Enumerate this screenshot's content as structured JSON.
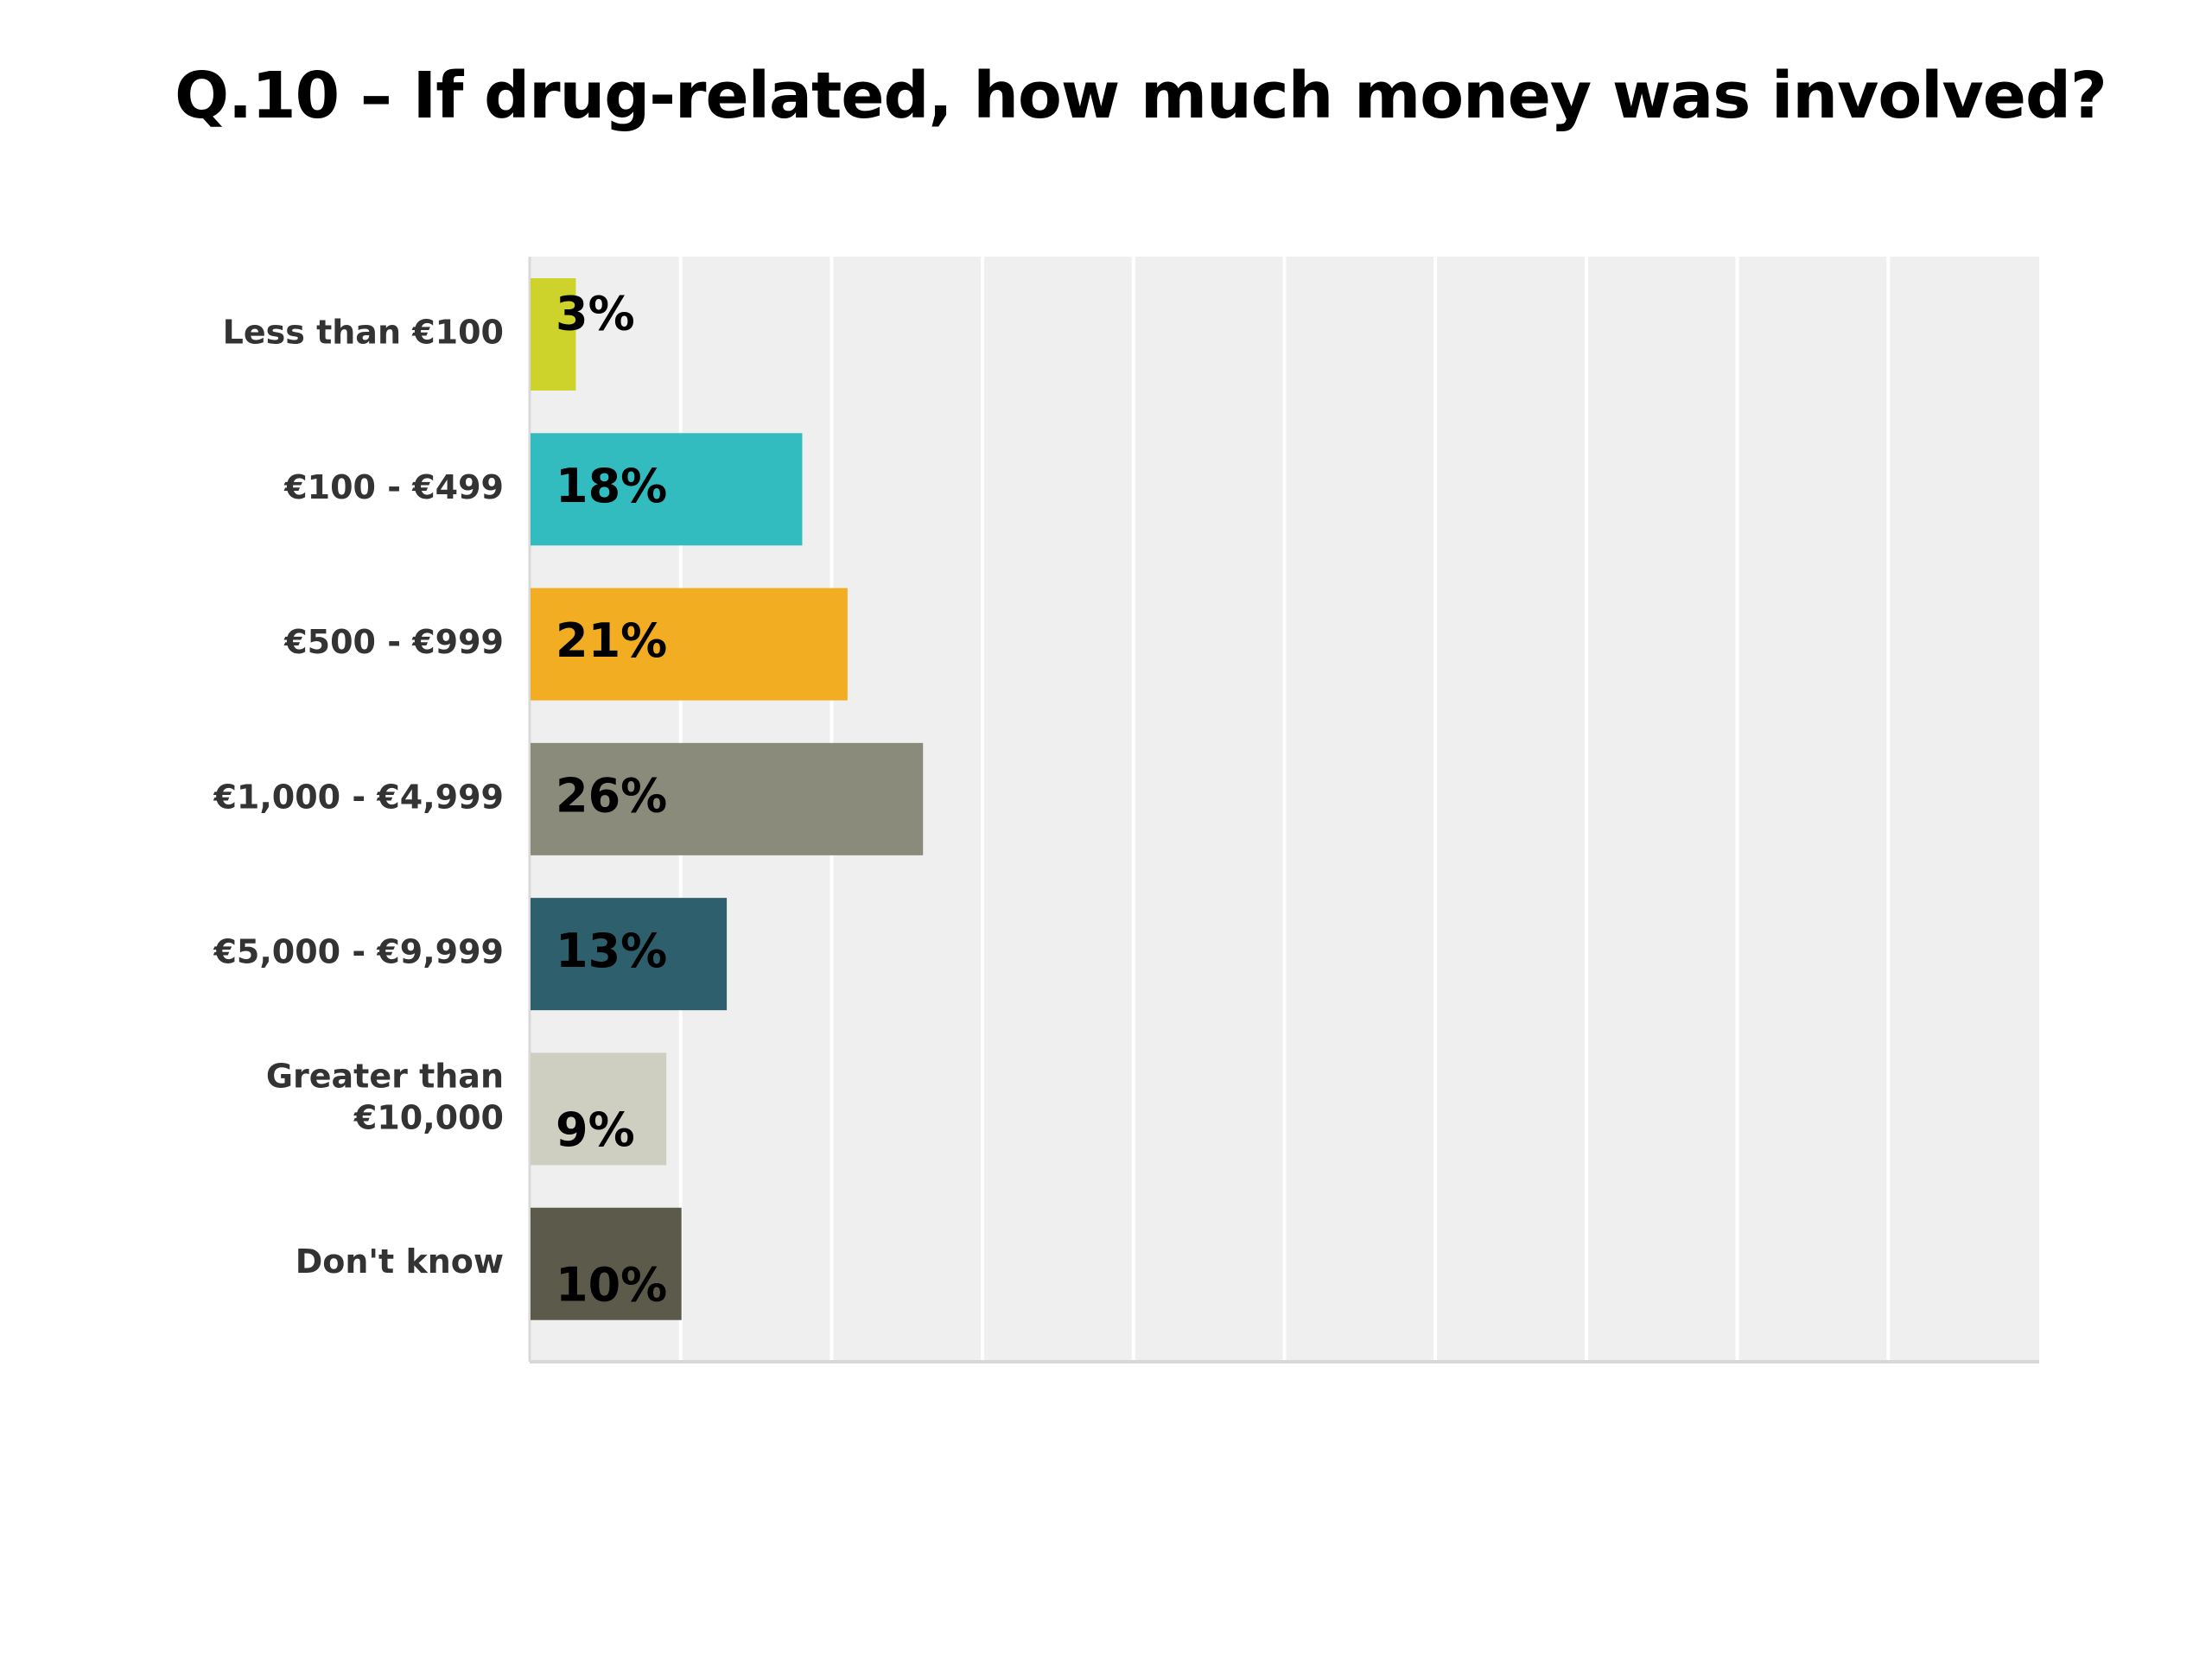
{
  "title": "Q.10 – If drug-related, how much money was involved?",
  "chart_data": {
    "type": "bar",
    "orientation": "horizontal",
    "categories": [
      "Less than €100",
      "€100 - €499",
      "€500 - €999",
      "€1,000 - €4,999",
      "€5,000 - €9,999",
      "Greater than €10,000",
      "Don't know"
    ],
    "values": [
      3,
      18,
      21,
      26,
      13,
      9,
      10
    ],
    "value_labels": [
      "3%",
      "18%",
      "21%",
      "26%",
      "13%",
      "9%",
      "10%"
    ],
    "colors": [
      "#cdd32a",
      "#33bcbf",
      "#f2ad22",
      "#8a8b7a",
      "#2e5f6d",
      "#cfcfc1",
      "#5c5a4a"
    ],
    "xlim": [
      0,
      100
    ],
    "grid": true,
    "legend": "none",
    "plot_background": "#efefef"
  }
}
